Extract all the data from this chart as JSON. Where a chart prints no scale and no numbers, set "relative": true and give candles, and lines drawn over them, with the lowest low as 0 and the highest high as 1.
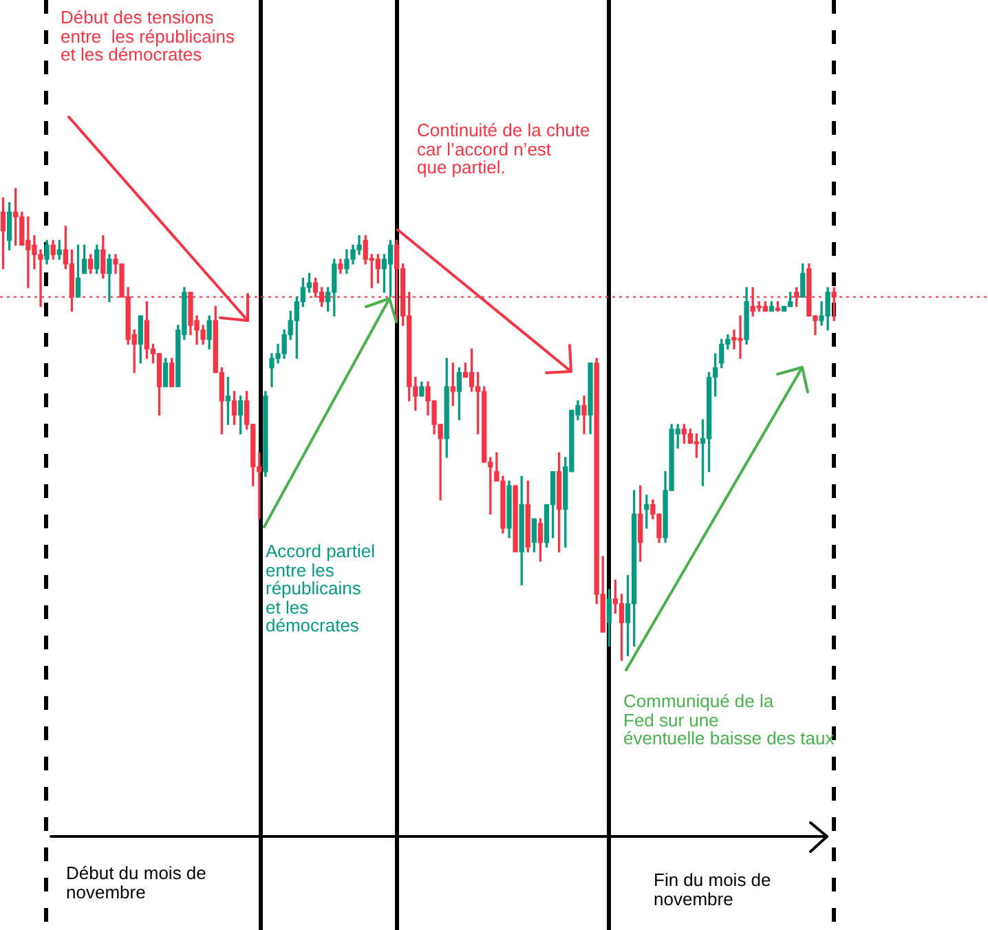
{
  "chart_data": {
    "type": "candlestick",
    "relative": true,
    "categories": [
      null,
      null,
      null,
      null,
      null,
      null,
      null,
      null,
      null,
      null,
      null,
      null,
      null,
      null,
      null,
      null,
      null,
      null,
      null,
      null,
      null,
      null,
      null,
      null,
      null,
      null,
      null,
      null,
      null,
      null,
      null,
      null,
      null,
      null,
      null,
      null,
      null,
      null,
      null,
      null,
      null,
      null,
      null,
      null,
      null,
      null,
      null,
      null,
      null,
      null,
      null,
      null,
      null,
      null,
      null,
      null,
      null,
      null,
      null,
      null,
      null,
      null,
      null,
      null,
      null,
      null,
      null,
      null,
      null,
      null,
      null,
      null,
      null,
      null,
      null,
      null,
      null,
      null,
      null,
      null,
      null,
      null,
      null,
      null,
      null,
      null,
      null,
      null,
      null,
      null,
      null,
      null,
      null,
      null,
      null,
      null,
      null,
      null,
      null,
      null,
      null,
      null,
      null,
      null,
      null,
      null,
      null,
      null,
      null,
      null,
      null,
      null,
      null,
      null,
      null,
      null,
      null,
      null,
      null,
      null,
      null,
      null,
      null,
      null,
      null,
      null,
      null,
      null,
      null,
      null,
      null,
      null,
      null,
      null
    ],
    "ohlc": [
      [
        0.95,
        0.98,
        0.83,
        0.91
      ],
      [
        0.89,
        0.97,
        0.87,
        0.95
      ],
      [
        0.95,
        1,
        0.88,
        0.94
      ],
      [
        0.94,
        0.95,
        0.88,
        0.88
      ],
      [
        0.89,
        0.94,
        0.79,
        0.87
      ],
      [
        0.88,
        0.9,
        0.83,
        0.86
      ],
      [
        0.86,
        0.87,
        0.75,
        0.85
      ],
      [
        0.85,
        0.89,
        0.84,
        0.88
      ],
      [
        0.88,
        0.89,
        0.85,
        0.86
      ],
      [
        0.86,
        0.89,
        0.85,
        0.87
      ],
      [
        0.87,
        0.92,
        0.83,
        0.84
      ],
      [
        0.84,
        0.87,
        0.74,
        0.77
      ],
      [
        0.77,
        0.88,
        0.77,
        0.81
      ],
      [
        0.82,
        0.88,
        0.82,
        0.85
      ],
      [
        0.85,
        0.86,
        0.82,
        0.83
      ],
      [
        0.83,
        0.88,
        0.82,
        0.87
      ],
      [
        0.87,
        0.9,
        0.81,
        0.82
      ],
      [
        0.82,
        0.86,
        0.76,
        0.85
      ],
      [
        0.85,
        0.86,
        0.82,
        0.84
      ],
      [
        0.84,
        0.84,
        0.77,
        0.77
      ],
      [
        0.77,
        0.79,
        0.67,
        0.68
      ],
      [
        0.69,
        0.7,
        0.61,
        0.67
      ],
      [
        0.67,
        0.73,
        0.63,
        0.73
      ],
      [
        0.72,
        0.76,
        0.64,
        0.66
      ],
      [
        0.66,
        0.67,
        0.63,
        0.65
      ],
      [
        0.65,
        0.65,
        0.52,
        0.58
      ],
      [
        0.58,
        0.64,
        0.58,
        0.63
      ],
      [
        0.63,
        0.64,
        0.58,
        0.58
      ],
      [
        0.58,
        0.71,
        0.58,
        0.7
      ],
      [
        0.69,
        0.79,
        0.68,
        0.78
      ],
      [
        0.78,
        0.78,
        0.69,
        0.71
      ],
      [
        0.72,
        0.73,
        0.67,
        0.7
      ],
      [
        0.7,
        0.71,
        0.67,
        0.68
      ],
      [
        0.68,
        0.73,
        0.66,
        0.72
      ],
      [
        0.72,
        0.75,
        0.61,
        0.61
      ],
      [
        0.61,
        0.62,
        0.48,
        0.55
      ],
      [
        0.55,
        0.6,
        0.5,
        0.56
      ],
      [
        0.55,
        0.57,
        0.5,
        0.52
      ],
      [
        0.52,
        0.56,
        0.48,
        0.55
      ],
      [
        0.55,
        0.57,
        0.49,
        0.5
      ],
      [
        0.5,
        0.5,
        0.37,
        0.41
      ],
      [
        0.41,
        0.44,
        0.3,
        0.4
      ],
      [
        0.4,
        0.57,
        0.39,
        0.56
      ],
      [
        0.62,
        0.65,
        0.58,
        0.64
      ],
      [
        0.64,
        0.67,
        0.63,
        0.65
      ],
      [
        0.65,
        0.7,
        0.64,
        0.69
      ],
      [
        0.69,
        0.74,
        0.68,
        0.72
      ],
      [
        0.72,
        0.77,
        0.64,
        0.76
      ],
      [
        0.76,
        0.81,
        0.75,
        0.79
      ],
      [
        0.79,
        0.82,
        0.78,
        0.8
      ],
      [
        0.8,
        0.81,
        0.77,
        0.78
      ],
      [
        0.78,
        0.79,
        0.75,
        0.76
      ],
      [
        0.76,
        0.79,
        0.74,
        0.78
      ],
      [
        0.78,
        0.85,
        0.73,
        0.84
      ],
      [
        0.84,
        0.85,
        0.82,
        0.83
      ],
      [
        0.83,
        0.87,
        0.82,
        0.85
      ],
      [
        0.85,
        0.88,
        0.84,
        0.87
      ],
      [
        0.87,
        0.9,
        0.86,
        0.88
      ],
      [
        0.89,
        0.9,
        0.84,
        0.85
      ],
      [
        0.852,
        0.86,
        0.79,
        0.848
      ],
      [
        0.85,
        0.86,
        0.8,
        0.83
      ],
      [
        0.83,
        0.86,
        0.78,
        0.85
      ],
      [
        0.84,
        0.89,
        0.77,
        0.88
      ],
      [
        0.88,
        0.89,
        0.72,
        0.83
      ],
      [
        0.83,
        0.84,
        0.71,
        0.73
      ],
      [
        0.73,
        0.78,
        0.55,
        0.58
      ],
      [
        0.58,
        0.6,
        0.53,
        0.56
      ],
      [
        0.56,
        0.59,
        0.56,
        0.58
      ],
      [
        0.58,
        0.59,
        0.52,
        0.55
      ],
      [
        0.55,
        0.55,
        0.48,
        0.5
      ],
      [
        0.5,
        0.5,
        0.34,
        0.47
      ],
      [
        0.47,
        0.64,
        0.43,
        0.58
      ],
      [
        0.58,
        0.63,
        0.54,
        0.57
      ],
      [
        0.57,
        0.62,
        0.51,
        0.61
      ],
      [
        0.61,
        0.63,
        0.6,
        0.6
      ],
      [
        0.61,
        0.66,
        0.57,
        0.58
      ],
      [
        0.58,
        0.61,
        0.48,
        0.57
      ],
      [
        0.57,
        0.58,
        0.42,
        0.42
      ],
      [
        0.42,
        0.43,
        0.31,
        0.41
      ],
      [
        0.4,
        0.44,
        0.38,
        0.38
      ],
      [
        0.38,
        0.39,
        0.27,
        0.28
      ],
      [
        0.28,
        0.38,
        0.26,
        0.37
      ],
      [
        0.37,
        0.37,
        0.23,
        0.23
      ],
      [
        0.23,
        0.39,
        0.16,
        0.33
      ],
      [
        0.33,
        0.38,
        0.23,
        0.24
      ],
      [
        0.25,
        0.3,
        0.23,
        0.3
      ],
      [
        0.29,
        0.3,
        0.21,
        0.25
      ],
      [
        0.25,
        0.33,
        0.24,
        0.33
      ],
      [
        0.33,
        0.4,
        0.26,
        0.4
      ],
      [
        0.4,
        0.44,
        0.23,
        0.32
      ],
      [
        0.32,
        0.43,
        0.24,
        0.41
      ],
      [
        0.4,
        0.53,
        0.4,
        0.53
      ],
      [
        0.52,
        0.55,
        0.51,
        0.54
      ],
      [
        0.54,
        0.56,
        0.48,
        0.52
      ],
      [
        0.52,
        0.63,
        0.48,
        0.63
      ],
      [
        0.63,
        0.64,
        0.12,
        0.14
      ],
      [
        0.14,
        0.22,
        0.06,
        0.06
      ],
      [
        0.08,
        0.15,
        0.03,
        0.13
      ],
      [
        0.13,
        0.17,
        0.1,
        0.12
      ],
      [
        0.12,
        0.14,
        0,
        0.08
      ],
      [
        0.08,
        0.18,
        0.01,
        0.12
      ],
      [
        0.12,
        0.36,
        0.03,
        0.31
      ],
      [
        0.31,
        0.37,
        0.21,
        0.25
      ],
      [
        0.32,
        0.35,
        0.28,
        0.33
      ],
      [
        0.33,
        0.34,
        0.3,
        0.31
      ],
      [
        0.31,
        0.31,
        0.25,
        0.26
      ],
      [
        0.26,
        0.4,
        0.25,
        0.36
      ],
      [
        0.36,
        0.5,
        0.36,
        0.49
      ],
      [
        0.48,
        0.5,
        0.45,
        0.49
      ],
      [
        0.49,
        0.5,
        0.46,
        0.48
      ],
      [
        0.48,
        0.49,
        0.46,
        0.46
      ],
      [
        0.463,
        0.48,
        0.43,
        0.459
      ],
      [
        0.46,
        0.51,
        0.37,
        0.47
      ],
      [
        0.47,
        0.61,
        0.4,
        0.6
      ],
      [
        0.6,
        0.65,
        0.56,
        0.62
      ],
      [
        0.63,
        0.68,
        0.62,
        0.67
      ],
      [
        0.67,
        0.69,
        0.66,
        0.68
      ],
      [
        0.684,
        0.7,
        0.66,
        0.679
      ],
      [
        0.682,
        0.73,
        0.64,
        0.678
      ],
      [
        0.68,
        0.79,
        0.67,
        0.76
      ],
      [
        0.75,
        0.79,
        0.73,
        0.74
      ],
      [
        0.751,
        0.76,
        0.74,
        0.747
      ],
      [
        0.75,
        0.76,
        0.74,
        0.74
      ],
      [
        0.74,
        0.76,
        0.74,
        0.75
      ],
      [
        0.746,
        0.76,
        0.74,
        0.742
      ],
      [
        0.74,
        0.75,
        0.74,
        0.75
      ],
      [
        0.75,
        0.78,
        0.75,
        0.76
      ],
      [
        0.78,
        0.79,
        0.75,
        0.77
      ],
      [
        0.77,
        0.84,
        0.77,
        0.82
      ],
      [
        0.83,
        0.84,
        0.73,
        0.73
      ],
      [
        0.73,
        0.73,
        0.69,
        0.72
      ],
      [
        0.72,
        0.76,
        0.71,
        0.73
      ],
      [
        0.73,
        0.79,
        0.7,
        0.78
      ],
      [
        0.78,
        0.79,
        0.72,
        0.77
      ]
    ],
    "colors": [
      "#f23645",
      "#089981",
      "#f23645",
      "#f23645",
      "#f23645",
      "#f23645",
      "#f23645",
      "#089981",
      "#f23645",
      "#089981",
      "#f23645",
      "#f23645",
      "#089981",
      "#089981",
      "#f23645",
      "#089981",
      "#f23645",
      "#089981",
      "#f23645",
      "#f23645",
      "#f23645",
      "#f23645",
      "#089981",
      "#f23645",
      "#f23645",
      "#f23645",
      "#089981",
      "#f23645",
      "#089981",
      "#089981",
      "#f23645",
      "#f23645",
      "#f23645",
      "#089981",
      "#f23645",
      "#f23645",
      "#089981",
      "#f23645",
      "#089981",
      "#f23645",
      "#f23645",
      "#f23645",
      "#089981",
      "#089981",
      "#089981",
      "#089981",
      "#089981",
      "#089981",
      "#089981",
      "#089981",
      "#f23645",
      "#f23645",
      "#089981",
      "#089981",
      "#f23645",
      "#089981",
      "#089981",
      "#089981",
      "#f23645",
      "#f23645",
      "#f23645",
      "#089981",
      "#089981",
      "#f23645",
      "#f23645",
      "#f23645",
      "#f23645",
      "#089981",
      "#f23645",
      "#f23645",
      "#f23645",
      "#089981",
      "#f23645",
      "#089981",
      "#f23645",
      "#f23645",
      "#f23645",
      "#f23645",
      "#f23645",
      "#f23645",
      "#f23645",
      "#089981",
      "#f23645",
      "#089981",
      "#f23645",
      "#089981",
      "#f23645",
      "#089981",
      "#089981",
      "#f23645",
      "#089981",
      "#089981",
      "#089981",
      "#f23645",
      "#089981",
      "#f23645",
      "#f23645",
      "#089981",
      "#f23645",
      "#f23645",
      "#089981",
      "#089981",
      "#f23645",
      "#089981",
      "#f23645",
      "#f23645",
      "#089981",
      "#089981",
      "#089981",
      "#f23645",
      "#f23645",
      "#f23645",
      "#089981",
      "#089981",
      "#089981",
      "#089981",
      "#089981",
      "#f23645",
      "#f23645",
      "#089981",
      "#f23645",
      "#f23645",
      "#f23645",
      "#089981",
      "#f23645",
      "#089981",
      "#089981",
      "#f23645",
      "#089981",
      "#f23645",
      "#f23645",
      "#089981",
      "#089981",
      "#f23645"
    ],
    "ref_lines": [
      {
        "axis": "y",
        "value": 0.77,
        "color": "#f23645",
        "line_style": "dotted"
      }
    ],
    "annotations": [
      "Début des tensions\nentre  les républicains\net les démocrates",
      "Continuité de la chute\ncar l’accord n’est\nque partiel.",
      "Accord partiel\nentre les\nrépublicains\net les\ndémocrates",
      "Communiqué de la\nFed sur une\néventuelle baisse des taux",
      "Début du mois de\nnovembre",
      "Fin du mois de\nnovembre"
    ]
  }
}
